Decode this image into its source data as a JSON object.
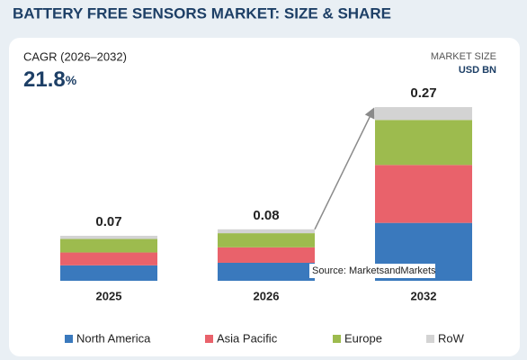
{
  "chart_data": {
    "type": "stacked-bar",
    "title": "BATTERY FREE SENSORS MARKET: SIZE & SHARE",
    "cagr_label": "CAGR (2026–2032)",
    "cagr_value": 21.8,
    "cagr_unit": "%",
    "unit_title": "MARKET SIZE",
    "unit": "USD BN",
    "source": "Source: MarketsandMarkets",
    "categories": [
      "2025",
      "2026",
      "2032"
    ],
    "totals": [
      0.07,
      0.08,
      0.27
    ],
    "series": [
      {
        "name": "North America",
        "color": "#3a79bd",
        "values": [
          0.024,
          0.028,
          0.09
        ]
      },
      {
        "name": "Asia Pacific",
        "color": "#e9626b",
        "values": [
          0.02,
          0.024,
          0.09
        ]
      },
      {
        "name": "Europe",
        "color": "#9dbb4e",
        "values": [
          0.021,
          0.022,
          0.07
        ]
      },
      {
        "name": "RoW",
        "color": "#d3d3d3",
        "values": [
          0.005,
          0.006,
          0.02
        ]
      }
    ]
  }
}
